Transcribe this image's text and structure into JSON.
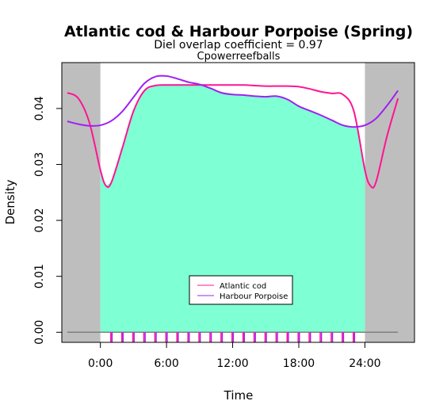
{
  "chart_data": {
    "type": "area",
    "title": "Atlantic cod & Harbour Porpoise (Spring)",
    "subtitle": "Diel overlap coefficient =  0.97",
    "site": "Cpowerreefballs",
    "xlabel": "Time",
    "ylabel": "Density",
    "xlim": [
      -3.5,
      28.5
    ],
    "ylim": [
      -0.0018,
      0.0482
    ],
    "x_ticks": [
      0,
      6,
      12,
      18,
      24
    ],
    "x_tick_labels": [
      "0:00",
      "6:00",
      "12:00",
      "18:00",
      "24:00"
    ],
    "y_ticks": [
      0.0,
      0.01,
      0.02,
      0.03,
      0.04
    ],
    "y_tick_labels": [
      "0.00",
      "0.01",
      "0.02",
      "0.03",
      "0.04"
    ],
    "night_regions": [
      [
        -3.5,
        0
      ],
      [
        24,
        28.5
      ]
    ],
    "overlap_fill_color": "#7fffd4",
    "night_color": "#bebebe",
    "legend_position": "center-bottom",
    "series": [
      {
        "name": "Atlantic cod",
        "color": "#ff1493",
        "x": [
          -3.0,
          -2.0,
          -1.0,
          0.0,
          0.5,
          1.0,
          2.0,
          3.0,
          4.0,
          5.0,
          6.0,
          7.0,
          8.0,
          9.0,
          10.0,
          11.0,
          12.0,
          13.0,
          14.0,
          15.0,
          16.0,
          17.0,
          18.0,
          19.0,
          20.0,
          21.0,
          22.0,
          23.0,
          24.0,
          24.5,
          25.0,
          26.0,
          27.0
        ],
        "y": [
          0.0428,
          0.0418,
          0.0375,
          0.029,
          0.0262,
          0.0268,
          0.033,
          0.0395,
          0.0432,
          0.0441,
          0.0442,
          0.0442,
          0.0442,
          0.0442,
          0.0442,
          0.0442,
          0.0442,
          0.0442,
          0.0441,
          0.044,
          0.044,
          0.044,
          0.0439,
          0.0435,
          0.043,
          0.0427,
          0.0425,
          0.0395,
          0.029,
          0.0262,
          0.0268,
          0.035,
          0.0418
        ]
      },
      {
        "name": "Harbour Porpoise",
        "color": "#a020f0",
        "x": [
          -3.0,
          -2.0,
          -1.0,
          0.0,
          1.0,
          2.0,
          3.0,
          4.0,
          5.0,
          6.0,
          7.0,
          8.0,
          9.0,
          10.0,
          11.0,
          12.0,
          13.0,
          14.0,
          15.0,
          16.0,
          17.0,
          18.0,
          19.0,
          20.0,
          21.0,
          22.0,
          23.0,
          24.0,
          25.0,
          26.0,
          27.0
        ],
        "y": [
          0.0377,
          0.0372,
          0.0369,
          0.037,
          0.0378,
          0.0395,
          0.042,
          0.0445,
          0.0457,
          0.0458,
          0.0453,
          0.0447,
          0.0443,
          0.0436,
          0.0428,
          0.0425,
          0.0424,
          0.0422,
          0.0421,
          0.0422,
          0.0416,
          0.0404,
          0.0396,
          0.0388,
          0.0379,
          0.037,
          0.0367,
          0.037,
          0.0382,
          0.0405,
          0.0432
        ]
      }
    ],
    "rug": {
      "Atlantic cod": [
        1,
        2,
        3,
        4,
        5,
        6,
        7,
        8,
        9,
        10,
        11,
        12,
        13,
        14,
        15,
        16,
        17,
        18,
        19,
        20,
        21,
        22,
        23
      ],
      "Harbour Porpoise": [
        1,
        2,
        3,
        4,
        5,
        6,
        7,
        8,
        9,
        10,
        11,
        12,
        13,
        14,
        15,
        16,
        17,
        18,
        19,
        20,
        21,
        22,
        23
      ]
    }
  }
}
